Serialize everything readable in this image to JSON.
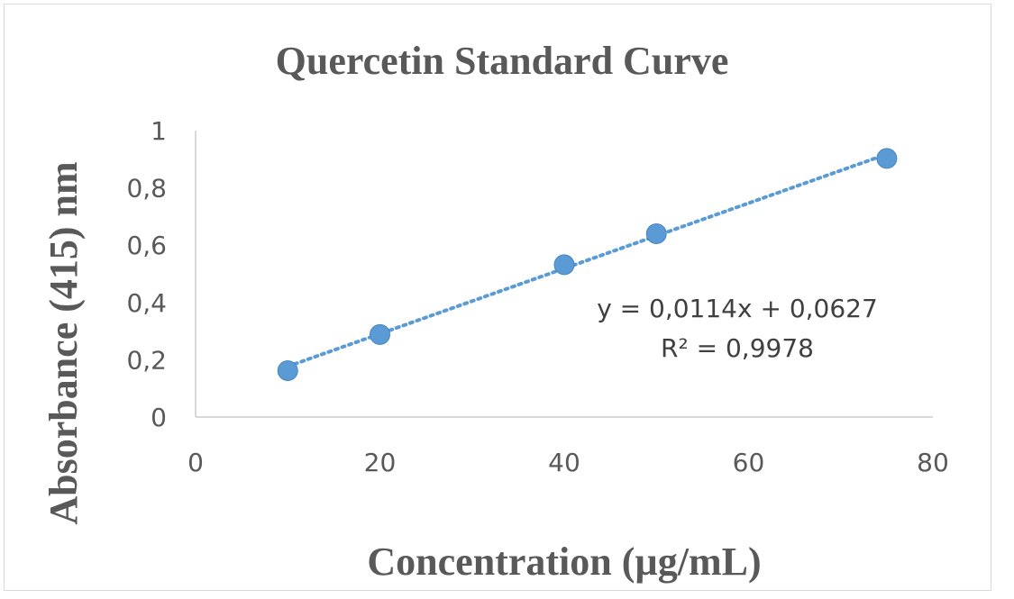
{
  "chart_data": {
    "type": "scatter",
    "title": "Quercetin Standard Curve",
    "xlabel": "Concentration (µg/mL)",
    "ylabel": "Absorbance (415) nm",
    "xlim": [
      0,
      80
    ],
    "ylim": [
      0,
      1
    ],
    "x_ticks": [
      "0",
      "20",
      "40",
      "60",
      "80"
    ],
    "y_ticks": [
      "0",
      "0,2",
      "0,4",
      "0,6",
      "0,8",
      "1"
    ],
    "grid": false,
    "series": [
      {
        "x": [
          10,
          20,
          40,
          50,
          75
        ],
        "y": [
          0.162,
          0.288,
          0.532,
          0.64,
          0.903
        ],
        "color": "#5b9bd5"
      }
    ],
    "trendline": {
      "type": "linear",
      "slope": 0.0114,
      "intercept": 0.0627,
      "style": "dotted",
      "color": "#5b9bd5",
      "equation": "y = 0,0114x + 0,0627",
      "r_squared": "R² = 0,9978"
    }
  }
}
